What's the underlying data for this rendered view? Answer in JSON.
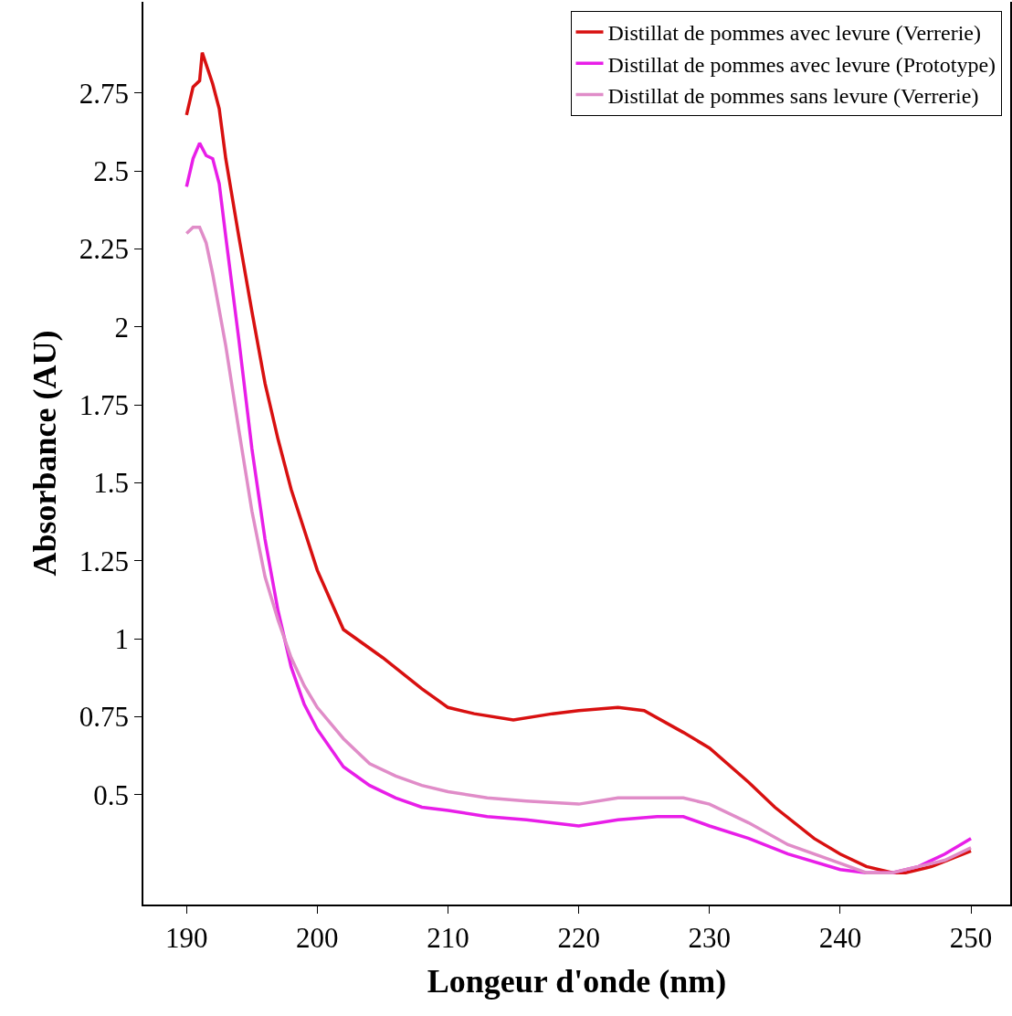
{
  "chart_data": {
    "type": "line",
    "xlabel": "Longeur d'onde (nm)",
    "ylabel": "Absorbance (AU)",
    "xlim": [
      186.7,
      253.0
    ],
    "xticks": [
      190,
      200,
      210,
      220,
      230,
      240,
      250
    ],
    "ylim": [
      0.148,
      3.043
    ],
    "yticks": [
      0.5,
      0.75,
      1,
      1.25,
      1.5,
      1.75,
      2,
      2.25,
      2.5,
      2.75
    ],
    "grid": false,
    "legend": "top right",
    "line_style": "solid",
    "series": [
      {
        "name": "Distillat de pommes avec levure (Verrerie)",
        "color": "#d81010",
        "x": [
          190,
          190.5,
          191,
          191.2,
          192,
          192.5,
          193,
          194,
          195,
          196,
          197,
          198,
          199,
          200,
          202,
          205,
          208,
          210,
          212,
          215,
          218,
          220,
          223,
          225,
          228,
          230,
          233,
          235,
          238,
          240,
          242,
          244,
          245,
          247,
          250
        ],
        "values": [
          2.68,
          2.77,
          2.79,
          2.88,
          2.78,
          2.7,
          2.54,
          2.29,
          2.05,
          1.82,
          1.64,
          1.48,
          1.35,
          1.22,
          1.03,
          0.94,
          0.84,
          0.78,
          0.76,
          0.74,
          0.76,
          0.77,
          0.78,
          0.77,
          0.7,
          0.65,
          0.54,
          0.46,
          0.36,
          0.31,
          0.27,
          0.25,
          0.25,
          0.27,
          0.32
        ]
      },
      {
        "name": "Distillat de pommes avec levure (Prototype)",
        "color": "#e81ee8",
        "x": [
          190,
          190.5,
          191,
          191.5,
          192,
          192.5,
          193,
          194,
          195,
          196,
          197,
          198,
          199,
          200,
          202,
          204,
          206,
          208,
          210,
          213,
          216,
          220,
          223,
          226,
          228,
          230,
          233,
          236,
          240,
          242,
          244,
          246,
          248,
          250
        ],
        "values": [
          2.45,
          2.54,
          2.59,
          2.55,
          2.54,
          2.46,
          2.29,
          1.96,
          1.61,
          1.32,
          1.09,
          0.91,
          0.79,
          0.71,
          0.59,
          0.53,
          0.49,
          0.46,
          0.45,
          0.43,
          0.42,
          0.4,
          0.42,
          0.43,
          0.43,
          0.4,
          0.36,
          0.31,
          0.26,
          0.25,
          0.25,
          0.27,
          0.31,
          0.36
        ]
      },
      {
        "name": "Distillat de pommes sans levure (Verrerie)",
        "color": "#e08cc8",
        "x": [
          190,
          190.5,
          191,
          191.5,
          192,
          193,
          194,
          195,
          196,
          197,
          198,
          199,
          200,
          202,
          204,
          206,
          208,
          210,
          213,
          216,
          220,
          223,
          226,
          228,
          230,
          233,
          236,
          240,
          242,
          244,
          246,
          248,
          250
        ],
        "values": [
          2.3,
          2.32,
          2.32,
          2.27,
          2.17,
          1.94,
          1.67,
          1.41,
          1.2,
          1.06,
          0.94,
          0.85,
          0.78,
          0.68,
          0.6,
          0.56,
          0.53,
          0.51,
          0.49,
          0.48,
          0.47,
          0.49,
          0.49,
          0.49,
          0.47,
          0.41,
          0.34,
          0.28,
          0.25,
          0.25,
          0.27,
          0.29,
          0.33
        ]
      }
    ]
  }
}
